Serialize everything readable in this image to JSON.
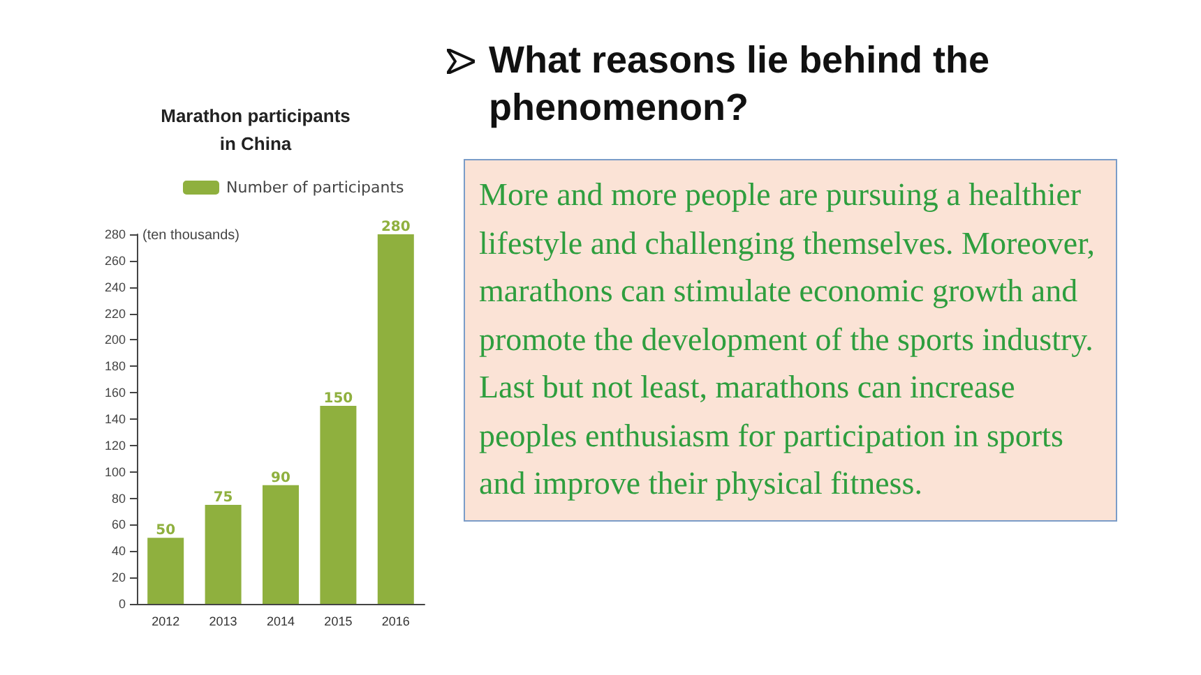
{
  "chart_data": {
    "type": "bar",
    "title": "Marathon participants\nin China",
    "ylabel": "(ten thousands)",
    "categories": [
      "2012",
      "2013",
      "2014",
      "2015",
      "2016"
    ],
    "series": [
      {
        "name": "Number of participants",
        "color": "#8fb03e",
        "values": [
          50,
          75,
          90,
          150,
          280
        ]
      }
    ],
    "ylim": [
      0,
      280
    ],
    "yticks": [
      0,
      20,
      40,
      60,
      80,
      100,
      120,
      140,
      160,
      180,
      200,
      220,
      240,
      260,
      280
    ],
    "data_labels": true,
    "legend": "top",
    "grid": false,
    "annotations": [
      "What reasons lie behind the phenomenon?",
      "More and more people are pursuing a healthier lifestyle and challenging themselves. Moreover, marathons can stimulate economic growth and promote the development of the sports industry. Last but not least, marathons can increase peoples enthusiasm for participation in sports and improve their physical fitness."
    ]
  }
}
